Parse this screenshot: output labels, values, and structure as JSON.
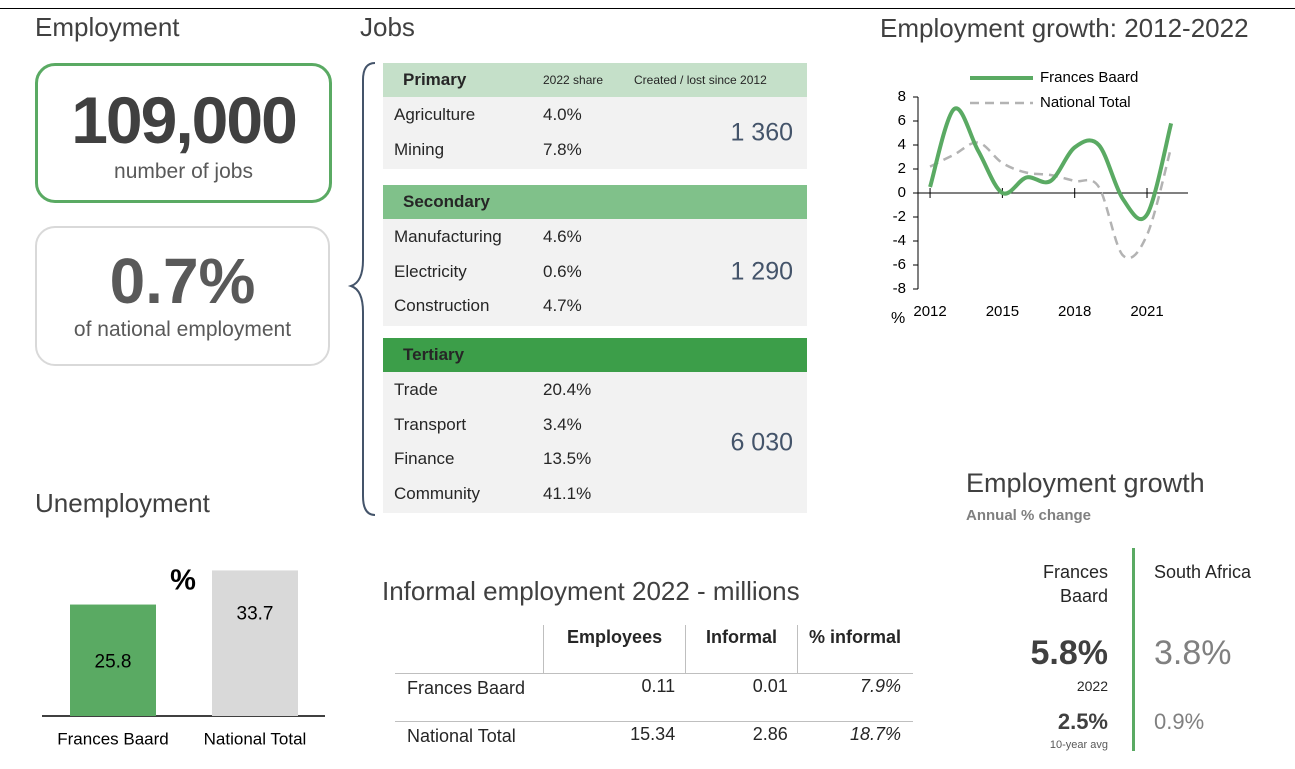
{
  "employment": {
    "title": "Employment",
    "jobs": "109,000",
    "jobs_label": "number of jobs",
    "share": "0.7%",
    "share_label": "of national employment"
  },
  "jobs": {
    "title": "Jobs",
    "headers": [
      "2022 share",
      "Created / lost since 2012"
    ],
    "sectors": [
      {
        "name": "Primary",
        "color": "#c5e0c9",
        "rows": [
          [
            "Agriculture",
            "4.0%"
          ],
          [
            "Mining",
            "7.8%"
          ]
        ],
        "change": "1 360"
      },
      {
        "name": "Secondary",
        "color": "#80c18a",
        "rows": [
          [
            "Manufacturing",
            "4.6%"
          ],
          [
            "Electricity",
            "0.6%"
          ],
          [
            "Construction",
            "4.7%"
          ]
        ],
        "change": "1 290"
      },
      {
        "name": "Tertiary",
        "color": "#3c9e49",
        "rows": [
          [
            "Trade",
            "20.4%"
          ],
          [
            "Transport",
            "3.4%"
          ],
          [
            "Finance",
            "13.5%"
          ],
          [
            "Community",
            "41.1%"
          ]
        ],
        "change": "6 030"
      }
    ]
  },
  "unemployment": {
    "title": "Unemployment"
  },
  "chart_data": [
    {
      "type": "line",
      "title": "Employment growth: 2012-2022",
      "y_label": "%",
      "x": [
        2012,
        2013,
        2014,
        2015,
        2016,
        2017,
        2018,
        2019,
        2020,
        2021,
        2022
      ],
      "series": [
        {
          "name": "Frances Baard",
          "color": "#5aaa63",
          "dash": false,
          "values": [
            0.5,
            7.0,
            3.5,
            0.0,
            1.3,
            1.0,
            3.8,
            4.0,
            -0.5,
            -1.8,
            5.8
          ]
        },
        {
          "name": "National Total",
          "color": "#b3b3b3",
          "dash": true,
          "values": [
            2.2,
            3.2,
            4.2,
            2.5,
            1.7,
            1.5,
            1.0,
            0.5,
            -5.2,
            -3.5,
            3.8
          ]
        }
      ],
      "xlim": [
        2011.5,
        2022.7
      ],
      "xticks": [
        2012,
        2015,
        2018,
        2021
      ],
      "ylim": [
        -8,
        8
      ],
      "yticks": [
        -8,
        -6,
        -4,
        -2,
        0,
        2,
        4,
        6,
        8
      ]
    },
    {
      "type": "bar",
      "annotation": "%",
      "categories": [
        "Frances Baard",
        "National Total"
      ],
      "values": [
        25.8,
        33.7
      ],
      "colors": [
        "#5aaa63",
        "#d9d9d9"
      ]
    }
  ],
  "informal": {
    "title": "Informal employment 2022 - millions",
    "headers": [
      "Employees",
      "Informal",
      "% informal"
    ],
    "rows": [
      [
        "Frances Baard",
        "0.11",
        "0.01",
        "7.9%"
      ],
      [
        "National Total",
        "15.34",
        "2.86",
        "18.7%"
      ]
    ]
  },
  "growth": {
    "title": "Employment growth",
    "subtitle": "Annual % change",
    "regions": [
      "Frances Baard",
      "South Africa"
    ],
    "latest": [
      "5.8%",
      "3.8%"
    ],
    "latest_label": "2022",
    "average": [
      "2.5%",
      "0.9%"
    ],
    "average_label": "10-year avg"
  }
}
